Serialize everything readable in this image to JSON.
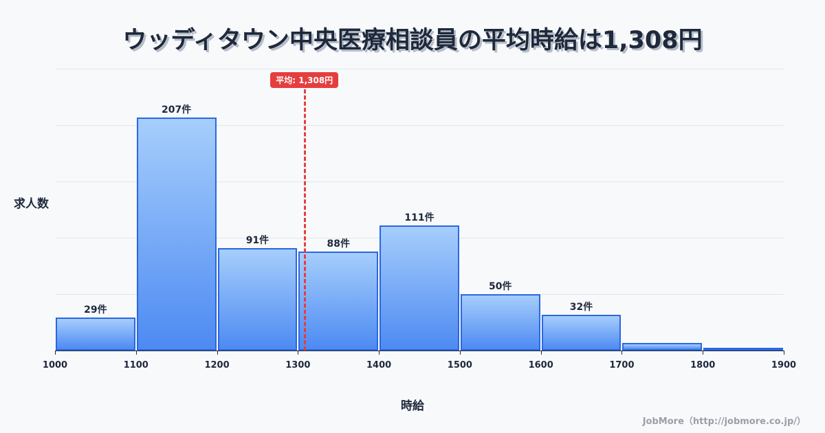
{
  "title": "ウッディタウン中央医療相談員の平均時給は1,308円",
  "y_axis_label": "求人数",
  "x_axis_label": "時給",
  "mean_badge": "平均: 1,308円",
  "credit": "JobMore（http://jobmore.co.jp/）",
  "colors": {
    "bar_top": "#a6cefc",
    "bar_bottom": "#4d8af2",
    "bar_border": "#2b67e0",
    "mean_line": "#e53e3e",
    "text": "#1e293b",
    "background": "#f8f9fb"
  },
  "chart_data": {
    "type": "bar",
    "title": "ウッディタウン中央医療相談員の平均時給は1,308円",
    "xlabel": "時給",
    "ylabel": "求人数",
    "bins": [
      [
        1000,
        1100
      ],
      [
        1100,
        1200
      ],
      [
        1200,
        1300
      ],
      [
        1300,
        1400
      ],
      [
        1400,
        1500
      ],
      [
        1500,
        1600
      ],
      [
        1600,
        1700
      ],
      [
        1700,
        1800
      ],
      [
        1800,
        1900
      ]
    ],
    "categories": [
      "1000-1100",
      "1100-1200",
      "1200-1300",
      "1300-1400",
      "1400-1500",
      "1500-1600",
      "1600-1700",
      "1700-1800",
      "1800-1900"
    ],
    "values": [
      29,
      207,
      91,
      88,
      111,
      50,
      32,
      7,
      2
    ],
    "data_labels": [
      "29件",
      "207件",
      "91件",
      "88件",
      "111件",
      "50件",
      "32件",
      "",
      ""
    ],
    "x_ticks": [
      "1000",
      "1100",
      "1200",
      "1300",
      "1400",
      "1500",
      "1600",
      "1700",
      "1800",
      "1900"
    ],
    "xlim": [
      1000,
      1900
    ],
    "ylim": [
      0,
      250
    ],
    "grid": true,
    "mean": 1308,
    "mean_label": "平均: 1,308円"
  }
}
